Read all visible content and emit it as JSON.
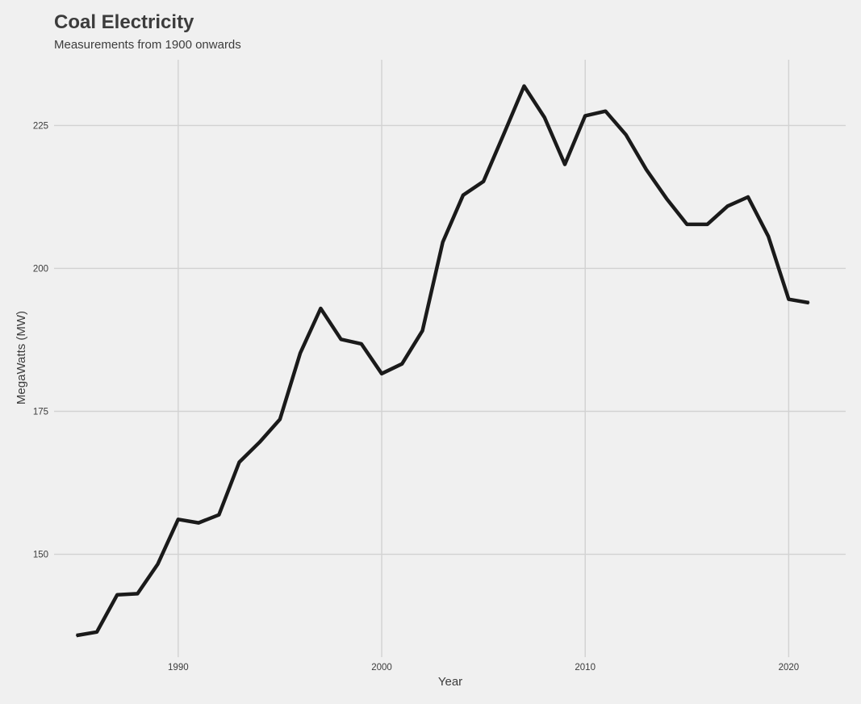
{
  "chart_data": {
    "type": "line",
    "title": "Coal Electricity",
    "subtitle": "Measurements from 1900 onwards",
    "xlabel": "Year",
    "ylabel": "MegaWatts (MW)",
    "x_ticks": [
      1990,
      2000,
      2010,
      2020
    ],
    "y_ticks": [
      150,
      175,
      200,
      225
    ],
    "xlim": [
      1983.9,
      2022.8
    ],
    "ylim": [
      132,
      236.5
    ],
    "grid": true,
    "legend": "none",
    "series_color": "#1a1a1a",
    "series": [
      {
        "x": [
          1985,
          1986,
          1987,
          1988,
          1989,
          1990,
          1991,
          1992,
          1993,
          1994,
          1995,
          1996,
          1997,
          1998,
          1999,
          2000,
          2001,
          2002,
          2003,
          2004,
          2005,
          2006,
          2007,
          2008,
          2009,
          2010,
          2011,
          2012,
          2013,
          2014,
          2015,
          2016,
          2017,
          2018,
          2019,
          2020,
          2021
        ],
        "values": [
          135.8,
          136.4,
          142.9,
          143.1,
          148.3,
          156.1,
          155.5,
          156.9,
          166.1,
          169.6,
          173.6,
          185.2,
          193.0,
          187.6,
          186.8,
          181.6,
          183.3,
          189.1,
          204.6,
          212.8,
          215.2,
          223.5,
          231.9,
          226.4,
          218.2,
          226.7,
          227.5,
          223.4,
          217.3,
          212.2,
          207.7,
          207.7,
          210.9,
          212.5,
          205.6,
          194.6,
          194.0
        ]
      }
    ]
  }
}
